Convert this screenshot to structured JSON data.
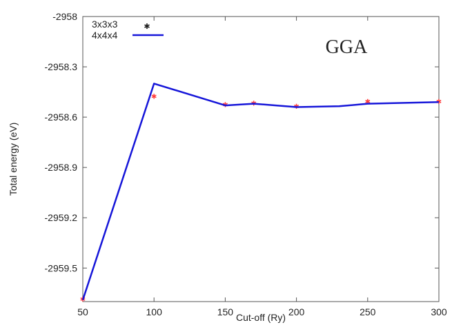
{
  "chart_data": {
    "type": "line",
    "title": "",
    "annotation": "GGA",
    "xlabel": "Cut-off (Ry)",
    "ylabel": "Total energy (eV)",
    "xlim": [
      50,
      300
    ],
    "ylim": [
      -2959.7,
      -2958.0
    ],
    "xticks": [
      50,
      100,
      150,
      200,
      250,
      300
    ],
    "xtick_labels": [
      "50",
      "100",
      "150",
      "200",
      "250",
      "300"
    ],
    "yticks": [
      -2958.0,
      -2958.3,
      -2958.6,
      -2958.9,
      -2959.2,
      -2959.5
    ],
    "ytick_labels": [
      "-2958",
      "-2958.3",
      "-2958.6",
      "-2958.9",
      "-2959.2",
      "-2959.5"
    ],
    "grid": false,
    "legend_position": "top-left",
    "series": [
      {
        "name": "3x3x3",
        "style": "points",
        "marker": "asterisk",
        "color": "#ff3b3b",
        "x": [
          50,
          100,
          150,
          170,
          200,
          250,
          300
        ],
        "y": [
          -2959.69,
          -2958.48,
          -2958.53,
          -2958.52,
          -2958.54,
          -2958.51,
          -2958.51
        ]
      },
      {
        "name": "4x4x4",
        "style": "line",
        "color": "#1515d9",
        "x": [
          50,
          100,
          150,
          170,
          200,
          230,
          250,
          300
        ],
        "y": [
          -2959.69,
          -2958.4,
          -2958.53,
          -2958.52,
          -2958.54,
          -2958.535,
          -2958.52,
          -2958.51
        ]
      }
    ]
  }
}
